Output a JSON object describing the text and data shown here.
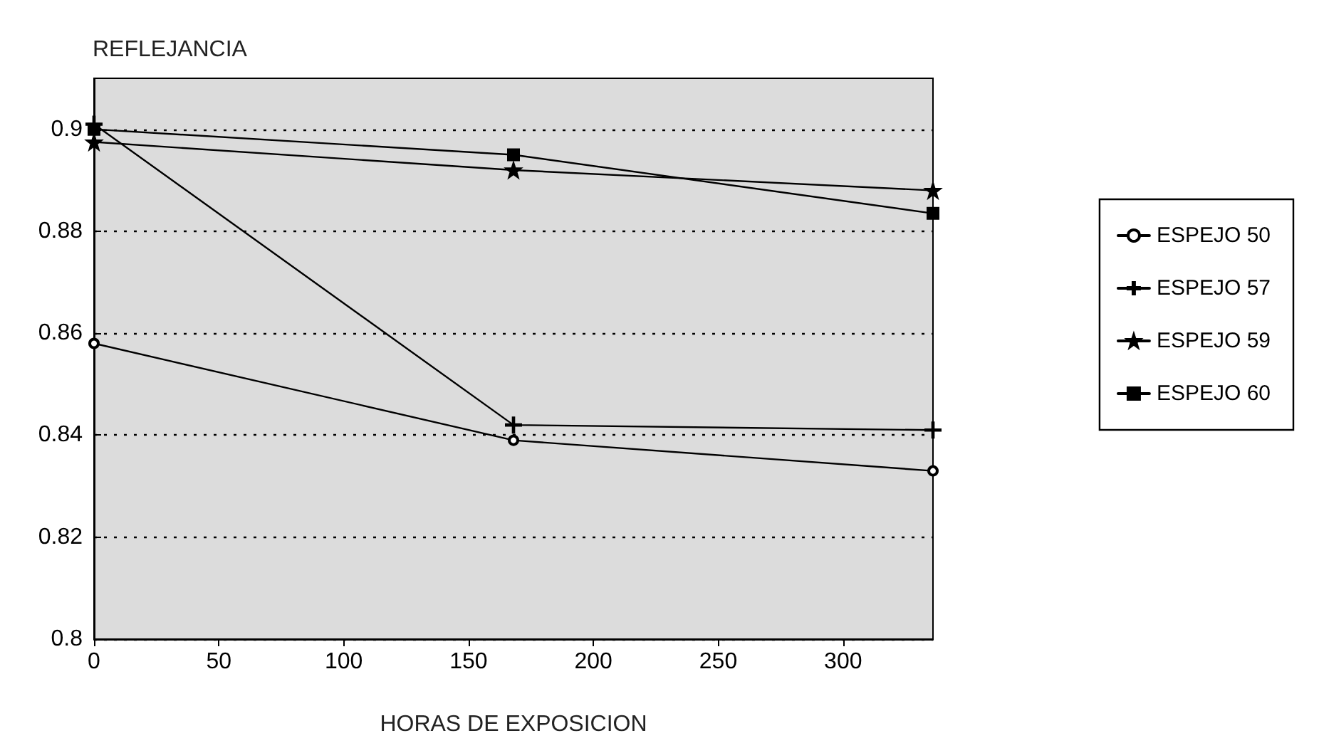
{
  "chart_data": {
    "type": "line",
    "title": "REFLEJANCIA",
    "xlabel": "HORAS DE EXPOSICION",
    "x": [
      0,
      168,
      336
    ],
    "series": [
      {
        "name": "ESPEJO 50",
        "color": "#000000",
        "marker": "circle",
        "values": [
          0.858,
          0.839,
          0.833
        ]
      },
      {
        "name": "ESPEJO 57",
        "color": "#000000",
        "marker": "cross",
        "values": [
          0.901,
          0.842,
          0.841
        ]
      },
      {
        "name": "ESPEJO 59",
        "color": "#000000",
        "marker": "star",
        "values": [
          0.8975,
          0.892,
          0.888
        ]
      },
      {
        "name": "ESPEJO 60",
        "color": "#000000",
        "marker": "square",
        "values": [
          0.9,
          0.895,
          0.8835
        ]
      }
    ],
    "xlim": [
      0,
      336
    ],
    "xticks": [
      0,
      50,
      100,
      150,
      200,
      250,
      300
    ],
    "ylim": [
      0.8,
      0.91
    ],
    "yticks": [
      0.8,
      0.82,
      0.84,
      0.86,
      0.88,
      0.9
    ],
    "grid": "y",
    "legend": "right",
    "line_style": "solid"
  }
}
